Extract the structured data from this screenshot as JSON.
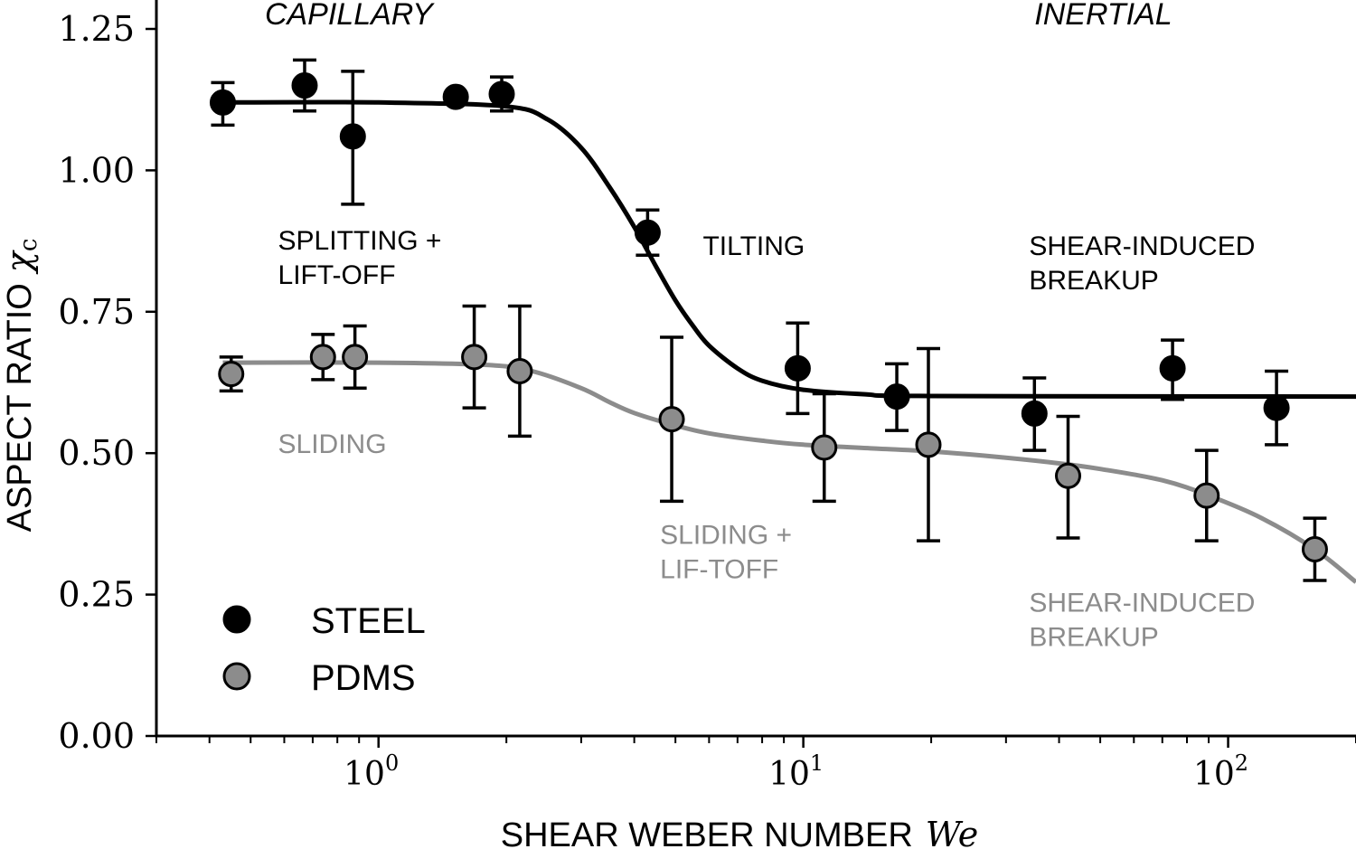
{
  "chart_data": {
    "type": "scatter",
    "xlabel": "SHEAR WEBER NUMBER",
    "xlabel_symbol": "We",
    "ylabel": "ASPECT RATIO",
    "ylabel_symbol": "χ",
    "ylabel_subscript": "c",
    "x_scale": "log",
    "xlim": [
      0.3,
      200
    ],
    "ylim": [
      0,
      1.25
    ],
    "grid": false,
    "legend_position": "lower-left",
    "y_ticks": [
      {
        "value": 0.0,
        "label": "0.00"
      },
      {
        "value": 0.25,
        "label": "0.25"
      },
      {
        "value": 0.5,
        "label": "0.50"
      },
      {
        "value": 0.75,
        "label": "0.75"
      },
      {
        "value": 1.0,
        "label": "1.00"
      },
      {
        "value": 1.25,
        "label": "1.25"
      }
    ],
    "x_ticks": [
      {
        "value": 1,
        "base": "10",
        "exp": "0"
      },
      {
        "value": 10,
        "base": "10",
        "exp": "1"
      },
      {
        "value": 100,
        "base": "10",
        "exp": "2"
      }
    ],
    "regime_labels": [
      {
        "text": "CAPILLARY",
        "x": 0.54,
        "y": 1.28
      },
      {
        "text": "INERTIAL",
        "x": 35,
        "y": 1.28
      }
    ],
    "series": [
      {
        "name": "STEEL",
        "color": "#000000",
        "marker_fill": "#000000",
        "points": [
          {
            "x": 0.43,
            "y": 1.12,
            "err_lo": 0.04,
            "err_hi": 0.035
          },
          {
            "x": 0.67,
            "y": 1.15,
            "err_lo": 0.045,
            "err_hi": 0.045
          },
          {
            "x": 0.87,
            "y": 1.06,
            "err_lo": 0.12,
            "err_hi": 0.115
          },
          {
            "x": 1.52,
            "y": 1.13,
            "err_lo": 0.0,
            "err_hi": 0.0
          },
          {
            "x": 1.95,
            "y": 1.135,
            "err_lo": 0.03,
            "err_hi": 0.03
          },
          {
            "x": 4.3,
            "y": 0.89,
            "err_lo": 0.04,
            "err_hi": 0.04
          },
          {
            "x": 9.7,
            "y": 0.65,
            "err_lo": 0.08,
            "err_hi": 0.08
          },
          {
            "x": 16.6,
            "y": 0.6,
            "err_lo": 0.06,
            "err_hi": 0.058
          },
          {
            "x": 35,
            "y": 0.57,
            "err_lo": 0.065,
            "err_hi": 0.063
          },
          {
            "x": 74,
            "y": 0.65,
            "err_lo": 0.055,
            "err_hi": 0.05
          },
          {
            "x": 130,
            "y": 0.58,
            "err_lo": 0.065,
            "err_hi": 0.065
          }
        ],
        "fit_curve": [
          {
            "x": 0.43,
            "y": 1.12
          },
          {
            "x": 1.0,
            "y": 1.12
          },
          {
            "x": 2.0,
            "y": 1.113
          },
          {
            "x": 2.5,
            "y": 1.09
          },
          {
            "x": 3.0,
            "y": 1.04
          },
          {
            "x": 3.5,
            "y": 0.97
          },
          {
            "x": 4.0,
            "y": 0.9
          },
          {
            "x": 4.5,
            "y": 0.83
          },
          {
            "x": 5.0,
            "y": 0.77
          },
          {
            "x": 5.5,
            "y": 0.725
          },
          {
            "x": 6.0,
            "y": 0.69
          },
          {
            "x": 7.0,
            "y": 0.65
          },
          {
            "x": 8.0,
            "y": 0.628
          },
          {
            "x": 10.0,
            "y": 0.612
          },
          {
            "x": 14.0,
            "y": 0.604
          },
          {
            "x": 20.0,
            "y": 0.601
          },
          {
            "x": 200.0,
            "y": 0.6
          }
        ],
        "regime_annotations": [
          {
            "lines": [
              "SPLITTING +",
              "LIFT-OFF"
            ],
            "x": 0.58,
            "y": 0.86
          },
          {
            "lines": [
              "TILTING"
            ],
            "x": 5.8,
            "y": 0.85
          },
          {
            "lines": [
              "SHEAR-INDUCED",
              "BREAKUP"
            ],
            "x": 34,
            "y": 0.85
          }
        ]
      },
      {
        "name": "PDMS",
        "color": "#8c8c8c",
        "marker_fill": "#8c8c8c",
        "points": [
          {
            "x": 0.45,
            "y": 0.64,
            "err_lo": 0.03,
            "err_hi": 0.03
          },
          {
            "x": 0.74,
            "y": 0.67,
            "err_lo": 0.04,
            "err_hi": 0.04
          },
          {
            "x": 0.88,
            "y": 0.67,
            "err_lo": 0.055,
            "err_hi": 0.055
          },
          {
            "x": 1.68,
            "y": 0.67,
            "err_lo": 0.09,
            "err_hi": 0.09
          },
          {
            "x": 2.15,
            "y": 0.645,
            "err_lo": 0.115,
            "err_hi": 0.115
          },
          {
            "x": 4.9,
            "y": 0.56,
            "err_lo": 0.145,
            "err_hi": 0.145
          },
          {
            "x": 11.2,
            "y": 0.51,
            "err_lo": 0.095,
            "err_hi": 0.095
          },
          {
            "x": 19.7,
            "y": 0.515,
            "err_lo": 0.17,
            "err_hi": 0.17
          },
          {
            "x": 42,
            "y": 0.46,
            "err_lo": 0.11,
            "err_hi": 0.105
          },
          {
            "x": 89,
            "y": 0.425,
            "err_lo": 0.08,
            "err_hi": 0.08
          },
          {
            "x": 160,
            "y": 0.33,
            "err_lo": 0.055,
            "err_hi": 0.055
          }
        ],
        "fit_curve": [
          {
            "x": 0.43,
            "y": 0.66
          },
          {
            "x": 1.0,
            "y": 0.66
          },
          {
            "x": 1.8,
            "y": 0.656
          },
          {
            "x": 2.3,
            "y": 0.645
          },
          {
            "x": 3.0,
            "y": 0.615
          },
          {
            "x": 3.5,
            "y": 0.59
          },
          {
            "x": 4.0,
            "y": 0.571
          },
          {
            "x": 5.0,
            "y": 0.549
          },
          {
            "x": 6.0,
            "y": 0.535
          },
          {
            "x": 8.0,
            "y": 0.522
          },
          {
            "x": 10.0,
            "y": 0.515
          },
          {
            "x": 15.0,
            "y": 0.508
          },
          {
            "x": 20.0,
            "y": 0.503
          },
          {
            "x": 30.0,
            "y": 0.492
          },
          {
            "x": 40.0,
            "y": 0.482
          },
          {
            "x": 50.0,
            "y": 0.472
          },
          {
            "x": 70.0,
            "y": 0.452
          },
          {
            "x": 90.0,
            "y": 0.425
          },
          {
            "x": 120.0,
            "y": 0.385
          },
          {
            "x": 160.0,
            "y": 0.33
          },
          {
            "x": 200.0,
            "y": 0.272
          }
        ],
        "regime_annotations": [
          {
            "lines": [
              "SLIDING"
            ],
            "x": 0.58,
            "y": 0.5
          },
          {
            "lines": [
              "SLIDING +",
              "LIF-TOFF"
            ],
            "x": 4.6,
            "y": 0.34
          },
          {
            "lines": [
              "SHEAR-INDUCED",
              "BREAKUP"
            ],
            "x": 34,
            "y": 0.22
          }
        ]
      }
    ]
  }
}
